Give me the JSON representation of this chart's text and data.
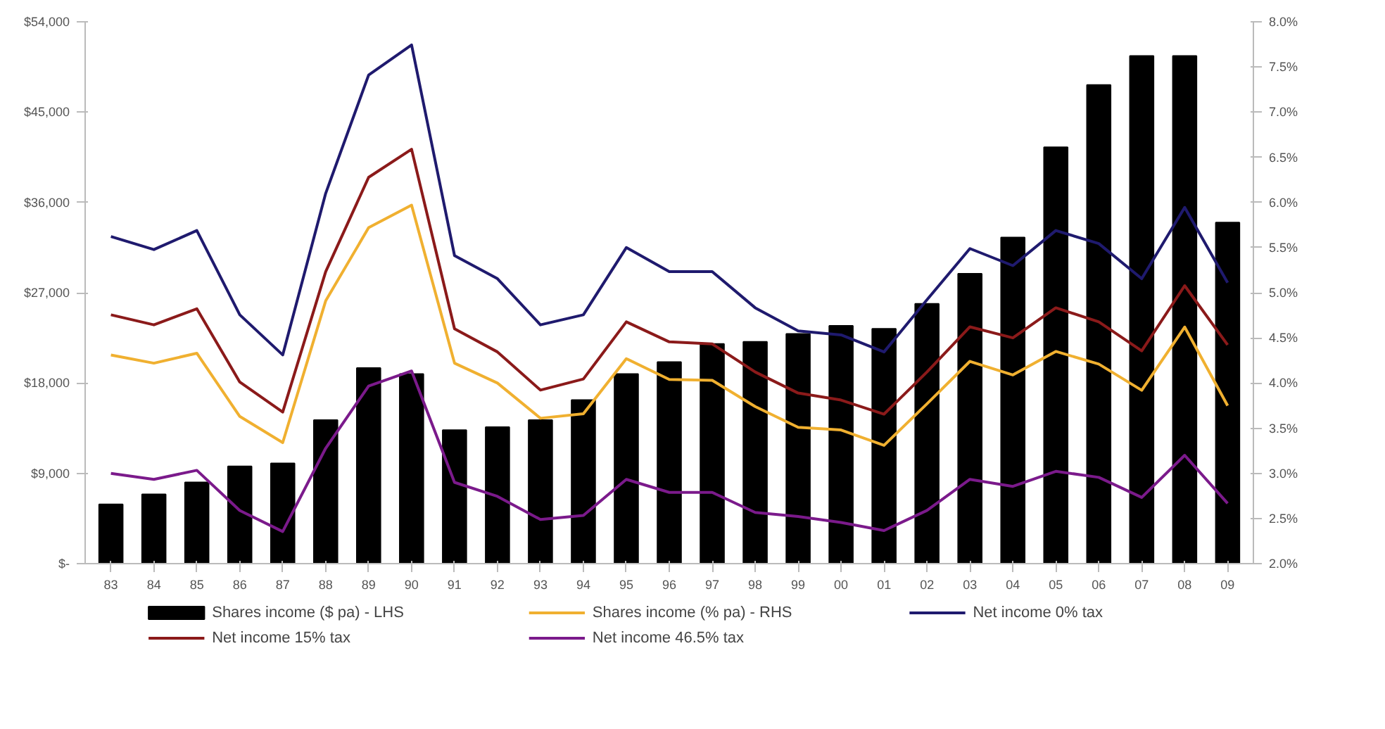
{
  "chart_data": {
    "type": "bar",
    "categories": [
      "83",
      "84",
      "85",
      "86",
      "87",
      "88",
      "89",
      "90",
      "91",
      "92",
      "93",
      "94",
      "95",
      "96",
      "97",
      "98",
      "99",
      "00",
      "01",
      "02",
      "03",
      "04",
      "05",
      "06",
      "07",
      "08",
      "09"
    ],
    "series": [
      {
        "name": "Shares income ($ pa) - LHS",
        "color": "#000000",
        "values": [
          5900,
          6900,
          8100,
          9700,
          10000,
          14300,
          19500,
          18900,
          13300,
          13600,
          14300,
          16300,
          18900,
          20100,
          21900,
          22100,
          22900,
          23700,
          23400,
          25900,
          28900,
          32500,
          41500,
          47700,
          50600,
          50600,
          34000
        ]
      },
      {
        "name": "Shares income (% pa) - RHS",
        "type": "line",
        "axis": "y2",
        "color": "#f0b030",
        "values": [
          4.31,
          4.22,
          4.33,
          3.63,
          3.34,
          4.91,
          5.72,
          5.97,
          4.22,
          4.0,
          3.61,
          3.66,
          4.27,
          4.04,
          4.03,
          3.74,
          3.51,
          3.48,
          3.31,
          3.77,
          4.24,
          4.09,
          4.35,
          4.21,
          3.92,
          4.62,
          3.75
        ]
      },
      {
        "name": "Net income 0% tax",
        "type": "line",
        "color": "#1f1a6e",
        "values": [
          32600,
          31300,
          33200,
          24800,
          20800,
          36900,
          48700,
          51700,
          30700,
          28400,
          23800,
          24800,
          31500,
          29100,
          29100,
          25500,
          23200,
          22800,
          21100,
          26300,
          31400,
          29700,
          33200,
          31900,
          28400,
          35500,
          28000
        ]
      },
      {
        "name": "Net income 15% tax",
        "type": "line",
        "color": "#8b1a1a",
        "values": [
          24800,
          23800,
          25400,
          18100,
          15100,
          29100,
          38500,
          41300,
          23400,
          21100,
          17300,
          18400,
          24100,
          22100,
          21900,
          19100,
          17000,
          16300,
          14900,
          19100,
          23600,
          22500,
          25500,
          24100,
          21200,
          27700,
          21800
        ]
      },
      {
        "name": "Net income 46.5% tax",
        "type": "line",
        "color": "#7b1a8b",
        "values": [
          9000,
          8400,
          9300,
          5300,
          3200,
          11500,
          17700,
          19200,
          8100,
          6700,
          4400,
          4800,
          8400,
          7100,
          7100,
          5100,
          4700,
          4100,
          3300,
          5300,
          8400,
          7700,
          9200,
          8600,
          6600,
          10800,
          6000
        ]
      }
    ],
    "ylim": [
      0,
      54000
    ],
    "yticks": [
      {
        "value": 0,
        "label": "$-"
      },
      {
        "value": 9000,
        "label": "$9,000"
      },
      {
        "value": 18000,
        "label": "$18,000"
      },
      {
        "value": 27000,
        "label": "$27,000"
      },
      {
        "value": 36000,
        "label": "$36,000"
      },
      {
        "value": 45000,
        "label": "$45,000"
      },
      {
        "value": 54000,
        "label": "$54,000"
      }
    ],
    "y2lim": [
      2.0,
      8.0
    ],
    "y2ticks": [
      {
        "value": 2.0,
        "label": "2.0%"
      },
      {
        "value": 2.5,
        "label": "2.5%"
      },
      {
        "value": 3.0,
        "label": "3.0%"
      },
      {
        "value": 3.5,
        "label": "3.5%"
      },
      {
        "value": 4.0,
        "label": "4.0%"
      },
      {
        "value": 4.5,
        "label": "4.5%"
      },
      {
        "value": 5.0,
        "label": "5.0%"
      },
      {
        "value": 5.5,
        "label": "5.5%"
      },
      {
        "value": 6.0,
        "label": "6.0%"
      },
      {
        "value": 6.5,
        "label": "6.5%"
      },
      {
        "value": 7.0,
        "label": "7.0%"
      },
      {
        "value": 7.5,
        "label": "7.5%"
      },
      {
        "value": 8.0,
        "label": "8.0%"
      }
    ],
    "grid": false,
    "legend": "bottom",
    "marker": "none",
    "line_style": "solid"
  }
}
